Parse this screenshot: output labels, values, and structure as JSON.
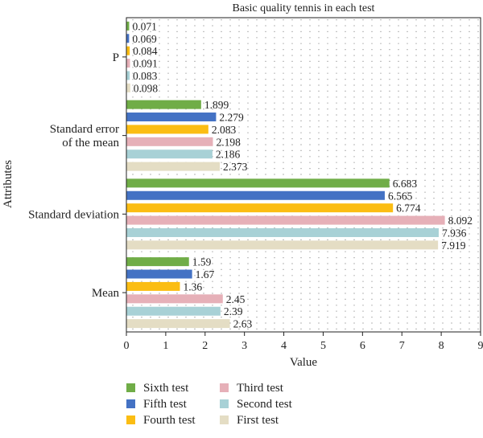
{
  "chart_data": {
    "type": "bar",
    "orientation": "horizontal",
    "title": "Basic quality tennis in each test",
    "xlabel": "Value",
    "ylabel": "Attributes",
    "xlim": [
      0,
      9
    ],
    "xticks": [
      0,
      1,
      2,
      3,
      4,
      5,
      6,
      7,
      8,
      9
    ],
    "grid": "dotted",
    "legend_position": "bottom",
    "categories": [
      "Mean",
      "Standard deviation",
      "Standard error of the mean",
      "P"
    ],
    "category_labels": [
      [
        "Mean"
      ],
      [
        "Standard deviation"
      ],
      [
        "Standard error",
        "of the mean"
      ],
      [
        "P"
      ]
    ],
    "series": [
      {
        "name": "First test",
        "color": "#e4ddc4",
        "values": [
          2.63,
          7.919,
          2.373,
          0.098
        ],
        "labels": [
          "2.63",
          "7.919",
          "2.373",
          "0.098"
        ]
      },
      {
        "name": "Second test",
        "color": "#a8d1d6",
        "values": [
          2.39,
          7.936,
          2.186,
          0.083
        ],
        "labels": [
          "2.39",
          "7.936",
          "2.186",
          "0.083"
        ]
      },
      {
        "name": "Third test",
        "color": "#e6b0b8",
        "values": [
          2.45,
          8.092,
          2.198,
          0.091
        ],
        "labels": [
          "2.45",
          "8.092",
          "2.198",
          "0.091"
        ]
      },
      {
        "name": "Fourth test",
        "color": "#fbbd13",
        "values": [
          1.36,
          6.774,
          2.083,
          0.084
        ],
        "labels": [
          "1.36",
          "6.774",
          "2.083",
          "0.084"
        ]
      },
      {
        "name": "Fifth test",
        "color": "#4472c4",
        "values": [
          1.67,
          6.565,
          2.279,
          0.069
        ],
        "labels": [
          "1.67",
          "6.565",
          "2.279",
          "0.069"
        ]
      },
      {
        "name": "Sixth test",
        "color": "#70ad47",
        "values": [
          1.59,
          6.683,
          1.899,
          0.071
        ],
        "labels": [
          "1.59",
          "6.683",
          "1.899",
          "0.071"
        ]
      }
    ],
    "legend_order": [
      "Sixth test",
      "Third test",
      "Fifth test",
      "Second test",
      "Fourth test",
      "First test"
    ]
  }
}
